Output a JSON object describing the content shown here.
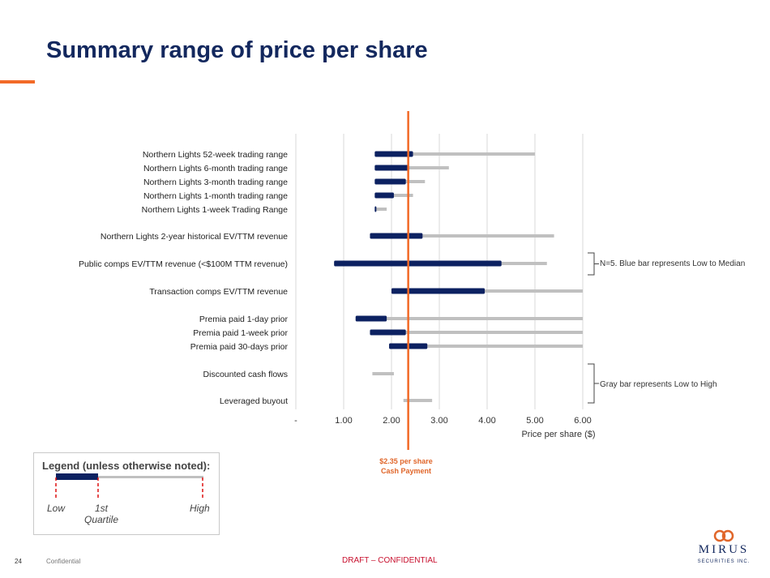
{
  "slide": {
    "title": "Summary range of price per share",
    "page_number": "24",
    "confidential": "Confidential",
    "draft": "DRAFT – CONFIDENTIAL",
    "logo_text": "MIRUS",
    "logo_subtext": "SECURITIES INC."
  },
  "legend": {
    "title": "Legend (unless otherwise noted):",
    "low": "Low",
    "quartile": "1st Quartile",
    "high": "High"
  },
  "notes": {
    "public_comps": "N=5. Blue bar represents Low to Median",
    "gray_bar": "Gray bar represents Low to High"
  },
  "marker": {
    "value": 2.35,
    "line1": "$2.35 per share",
    "line2": "Cash Payment"
  },
  "colors": {
    "blue": "#0c2161",
    "gray": "#c0c0c0",
    "orange": "#f26a27",
    "title": "#13285e"
  },
  "chart_data": {
    "type": "bar",
    "orientation": "horizontal",
    "xlabel": "Price per share ($)",
    "xlim": [
      0,
      6
    ],
    "x_ticks": [
      0,
      1,
      2,
      3,
      4,
      5,
      6
    ],
    "x_tick_labels": [
      "-",
      "1.00",
      "2.00",
      "3.00",
      "4.00",
      "5.00",
      "6.00"
    ],
    "grid": "vertical",
    "categories": [
      "Northern Lights 52-week trading range",
      "Northern Lights 6-month trading range",
      "Northern Lights 3-month trading range",
      "Northern Lights 1-month trading range",
      "Northern Lights 1-week Trading Range",
      "Northern Lights 2-year historical EV/TTM revenue",
      "Public comps EV/TTM revenue (<$100M TTM revenue)",
      "Transaction comps EV/TTM revenue",
      "Premia paid 1-day prior",
      "Premia paid 1-week prior",
      "Premia paid 30-days prior",
      "Discounted cash flows",
      "Leveraged buyout"
    ],
    "series": [
      {
        "values": [
          [
            1.65,
            2.45
          ],
          [
            1.65,
            2.35
          ],
          [
            1.65,
            2.3
          ],
          [
            1.65,
            2.05
          ],
          [
            1.65,
            1.68
          ],
          [
            1.55,
            2.65
          ],
          [
            0.8,
            4.3
          ],
          [
            2.0,
            3.95
          ],
          [
            1.25,
            1.9
          ],
          [
            1.55,
            2.3
          ],
          [
            1.95,
            2.75
          ],
          null,
          null
        ]
      },
      {
        "values": [
          [
            1.65,
            5.0
          ],
          [
            1.65,
            3.2
          ],
          [
            1.65,
            2.7
          ],
          [
            1.65,
            2.45
          ],
          [
            1.65,
            1.9
          ],
          [
            1.55,
            5.4
          ],
          [
            0.8,
            5.25
          ],
          [
            2.0,
            6.0
          ],
          [
            1.25,
            6.0
          ],
          [
            1.55,
            6.0
          ],
          [
            1.95,
            6.0
          ],
          [
            1.6,
            2.05
          ],
          [
            2.25,
            2.85
          ]
        ]
      }
    ]
  }
}
